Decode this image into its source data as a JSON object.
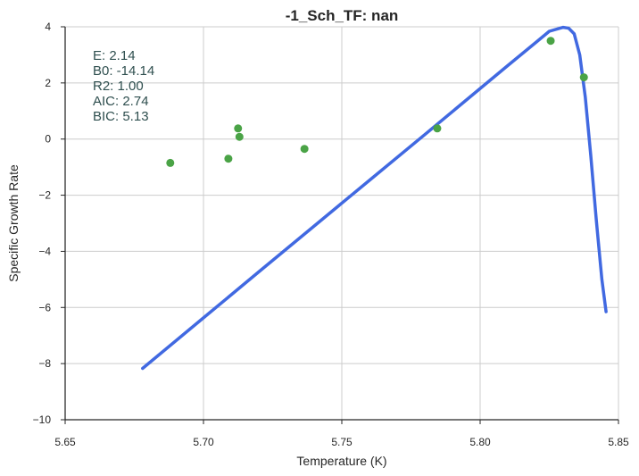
{
  "chart_data": {
    "type": "scatter",
    "title": "-1_Sch_TF: nan",
    "xlabel": "Temperature (K)",
    "ylabel": "Specific Growth Rate",
    "xlim": [
      5.65,
      5.85
    ],
    "ylim": [
      -10,
      4
    ],
    "grid": true,
    "x_ticks": [
      "5.65",
      "5.70",
      "5.75",
      "5.80",
      "5.85"
    ],
    "x_tick_values": [
      5.65,
      5.7,
      5.75,
      5.8,
      5.85
    ],
    "y_ticks": [
      "−10",
      "−8",
      "−6",
      "−4",
      "−2",
      "0",
      "2",
      "4"
    ],
    "y_tick_values": [
      -10,
      -8,
      -6,
      -4,
      -2,
      0,
      2,
      4
    ],
    "annotations": [
      "E:  2.14",
      "B0:  -14.14",
      "R2:  1.00",
      "AIC: 2.74",
      "BIC: 5.13"
    ],
    "annotation_placement": "top-left",
    "series": [
      {
        "kind": "scatter",
        "color": "#4aa346",
        "x": [
          5.688,
          5.709,
          5.7125,
          5.713,
          5.7365,
          5.7845,
          5.8255,
          5.8375
        ],
        "y": [
          -0.85,
          -0.7,
          0.38,
          0.08,
          -0.35,
          0.38,
          3.5,
          2.2
        ]
      },
      {
        "kind": "line",
        "color": "#4169e1",
        "x": [
          5.678,
          5.7,
          5.72,
          5.74,
          5.76,
          5.78,
          5.8,
          5.81,
          5.82,
          5.825,
          5.83,
          5.832,
          5.834,
          5.836,
          5.838,
          5.84,
          5.842,
          5.844,
          5.8455
        ],
        "y": [
          -8.17,
          -6.37,
          -4.73,
          -3.1,
          -1.47,
          0.16,
          1.8,
          2.62,
          3.43,
          3.84,
          3.98,
          3.95,
          3.75,
          3.0,
          1.5,
          -0.6,
          -2.9,
          -5.0,
          -6.15
        ]
      }
    ]
  }
}
